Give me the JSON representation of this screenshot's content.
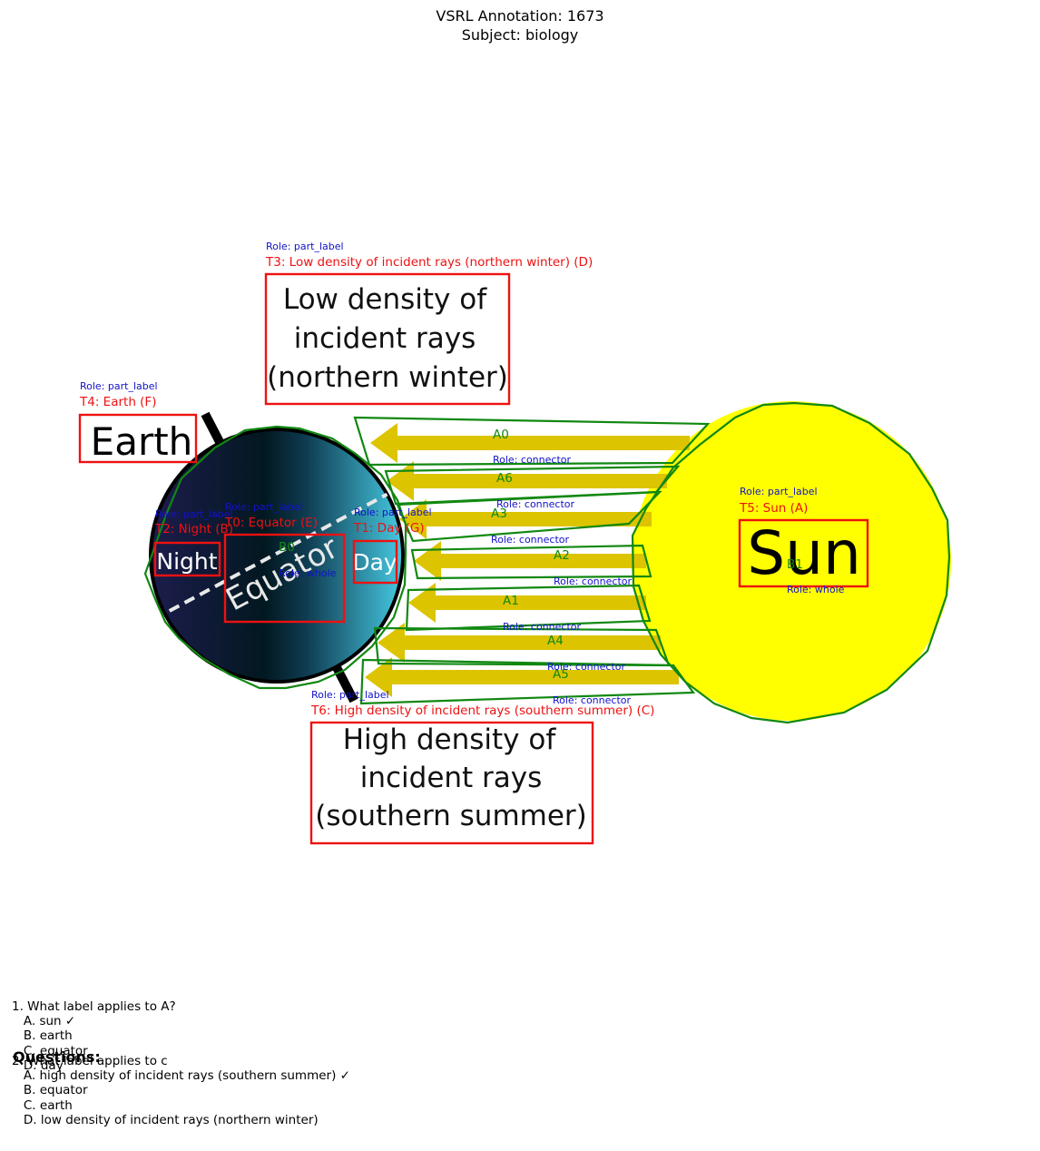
{
  "header": {
    "annotation": "VSRL Annotation: 1673",
    "subject": "Subject: biology"
  },
  "colors": {
    "box_red": "#ee1111",
    "region_green": "#118811",
    "role_blue": "#1111cc",
    "sun_yellow": "#ffff00",
    "arrow_gold": "#ddc400",
    "earth_dark": "#0c1026",
    "earth_light": "#45c8e0"
  },
  "diagram": {
    "earth_word": "Earth",
    "sun_word": "Sun",
    "night_word": "Night",
    "day_word": "Day",
    "equator_word": "Equator",
    "low_density": [
      "Low density of",
      "incident rays",
      "(northern winter)"
    ],
    "high_density": [
      "High density of",
      "incident rays",
      "(southern summer)"
    ]
  },
  "annotations": {
    "texts": [
      {
        "id": "T0",
        "role": "Role: part_label",
        "label": "T0: Equator (E)"
      },
      {
        "id": "T1",
        "role": "Role: part_label",
        "label": "T1: Day (G)"
      },
      {
        "id": "T2",
        "role": "Role: part_label",
        "label": "T2: Night (B)"
      },
      {
        "id": "T3",
        "role": "Role: part_label",
        "label": "T3: Low density of incident rays (northern winter) (D)"
      },
      {
        "id": "T4",
        "role": "Role: part_label",
        "label": "T4: Earth (F)"
      },
      {
        "id": "T5",
        "role": "Role: part_label",
        "label": "T5: Sun (A)"
      },
      {
        "id": "T6",
        "role": "Role: part_label",
        "label": "T6: High density of incident rays (southern summer) (C)"
      }
    ],
    "arrows": [
      {
        "id": "A0",
        "role": "Role: connector"
      },
      {
        "id": "A6",
        "role": "Role: connector"
      },
      {
        "id": "A3",
        "role": "Role: connector"
      },
      {
        "id": "A2",
        "role": "Role: connector"
      },
      {
        "id": "A1",
        "role": "Role: connector"
      },
      {
        "id": "A4",
        "role": "Role: connector"
      },
      {
        "id": "A5",
        "role": "Role: connector"
      }
    ],
    "blobs": [
      {
        "id": "B0",
        "role": "Role: whole"
      },
      {
        "id": "B1",
        "role": "Role: whole"
      }
    ]
  },
  "questions": {
    "title": "Questions:",
    "lines": [
      "1. What label applies to A?",
      "   A. sun ✓",
      "   B. earth",
      "   C. equator",
      "   D. day",
      "2. What label applies to c",
      "   A. high density of incident rays (southern summer) ✓",
      "   B. equator",
      "   C. earth",
      "   D. low density of incident rays (northern winter)"
    ]
  }
}
